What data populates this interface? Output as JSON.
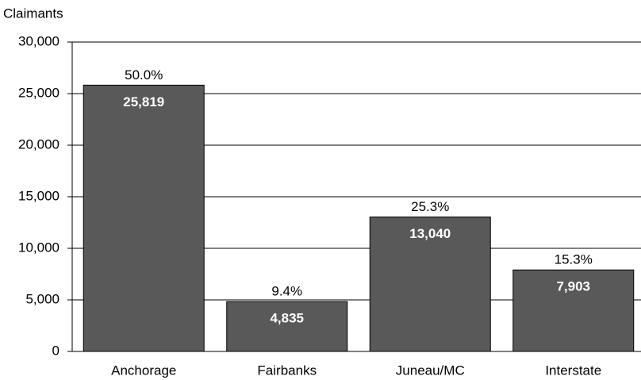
{
  "chart_data": {
    "type": "bar",
    "y_label": "Claimants",
    "categories": [
      "Anchorage",
      "Fairbanks",
      "Juneau/MC",
      "Interstate"
    ],
    "values": [
      25819,
      4835,
      13040,
      7903
    ],
    "value_labels": [
      "25,819",
      "4,835",
      "13,040",
      "7,903"
    ],
    "percent_labels": [
      "50.0%",
      "9.4%",
      "25.3%",
      "15.3%"
    ],
    "color": "#595959",
    "ylim": [
      0,
      30000
    ],
    "yticks": [
      0,
      {
        "value": 5000,
        "label": "5,000"
      },
      {
        "value": 10000,
        "label": "10,000"
      },
      {
        "value": 15000,
        "label": "15,000"
      },
      {
        "value": 20000,
        "label": "20,000"
      },
      {
        "value": 25000,
        "label": "25,000"
      },
      {
        "value": 30000,
        "label": "30,000"
      }
    ],
    "grid": true
  }
}
